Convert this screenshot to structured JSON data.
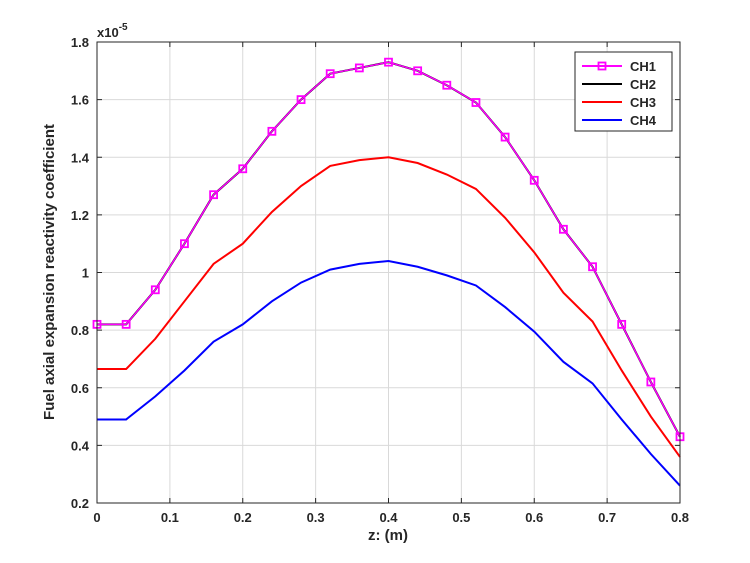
{
  "chart_data": {
    "type": "line",
    "xlabel": "z: (m)",
    "ylabel": "Fuel axial expansion reactivity coefficient",
    "multiplier_label": "x10",
    "multiplier_exponent": "-5",
    "xlim": [
      0,
      0.8
    ],
    "ylim": [
      0.2,
      1.8
    ],
    "grid": true,
    "legend_position": "top-right",
    "xticks": [
      "0",
      "0.1",
      "0.2",
      "0.3",
      "0.4",
      "0.5",
      "0.6",
      "0.7",
      "0.8"
    ],
    "yticks": [
      "0.2",
      "0.4",
      "0.6",
      "0.8",
      "1",
      "1.2",
      "1.4",
      "1.6",
      "1.8"
    ],
    "x": [
      0,
      0.04,
      0.08,
      0.12,
      0.16,
      0.2,
      0.24,
      0.28,
      0.32,
      0.36,
      0.4,
      0.44,
      0.48,
      0.52,
      0.56,
      0.6,
      0.64,
      0.68,
      0.72,
      0.76,
      0.8
    ],
    "series": [
      {
        "name": "CH1",
        "color": "#ff00ff",
        "marker": "square",
        "values": [
          0.82,
          0.82,
          0.94,
          1.1,
          1.27,
          1.36,
          1.49,
          1.6,
          1.69,
          1.71,
          1.73,
          1.7,
          1.65,
          1.59,
          1.47,
          1.32,
          1.15,
          1.02,
          0.82,
          0.62,
          0.43
        ]
      },
      {
        "name": "CH2",
        "color": "#000000",
        "marker": "none",
        "values": [
          0.82,
          0.82,
          0.94,
          1.1,
          1.27,
          1.36,
          1.49,
          1.6,
          1.69,
          1.71,
          1.73,
          1.7,
          1.65,
          1.59,
          1.47,
          1.32,
          1.15,
          1.02,
          0.82,
          0.62,
          0.43
        ]
      },
      {
        "name": "CH3",
        "color": "#ff0000",
        "marker": "none",
        "values": [
          0.665,
          0.665,
          0.77,
          0.9,
          1.03,
          1.1,
          1.21,
          1.3,
          1.37,
          1.39,
          1.4,
          1.38,
          1.34,
          1.29,
          1.19,
          1.07,
          0.93,
          0.83,
          0.66,
          0.5,
          0.36
        ]
      },
      {
        "name": "CH4",
        "color": "#0000ff",
        "marker": "none",
        "values": [
          0.49,
          0.49,
          0.57,
          0.66,
          0.76,
          0.82,
          0.9,
          0.965,
          1.01,
          1.03,
          1.04,
          1.02,
          0.99,
          0.955,
          0.88,
          0.795,
          0.69,
          0.615,
          0.49,
          0.37,
          0.26
        ]
      }
    ]
  }
}
